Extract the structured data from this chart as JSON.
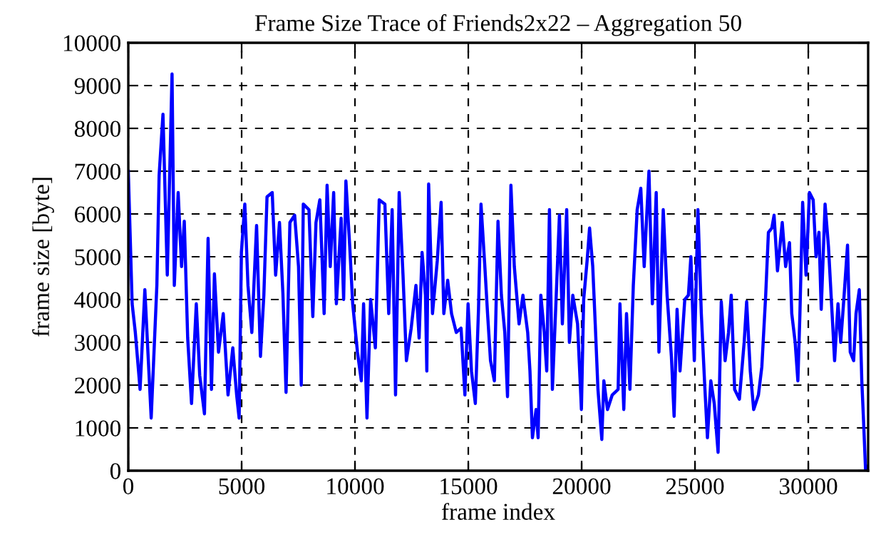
{
  "chart_data": {
    "type": "line",
    "title": "Frame Size Trace of Friends2x22 – Aggregation 50",
    "xlabel": "frame index",
    "ylabel": "frame size [byte]",
    "xlim": [
      0,
      32640
    ],
    "ylim": [
      0,
      10000
    ],
    "xticks": [
      0,
      5000,
      10000,
      15000,
      20000,
      25000,
      30000
    ],
    "yticks": [
      0,
      1000,
      2000,
      3000,
      4000,
      5000,
      6000,
      7000,
      8000,
      9000,
      10000
    ],
    "grid": true,
    "line_style": "solid",
    "marker": "none",
    "series": [
      {
        "color": "#0000ff",
        "x": [
          0,
          170,
          310,
          520,
          730,
          1010,
          1260,
          1360,
          1530,
          1720,
          1930,
          2030,
          2200,
          2350,
          2470,
          2620,
          2790,
          3000,
          3150,
          3360,
          3520,
          3670,
          3800,
          3980,
          4190,
          4400,
          4610,
          4780,
          4890,
          4990,
          5140,
          5280,
          5450,
          5660,
          5830,
          5980,
          6120,
          6350,
          6500,
          6670,
          6820,
          6960,
          7130,
          7340,
          7510,
          7630,
          7720,
          7970,
          8140,
          8280,
          8450,
          8640,
          8770,
          8910,
          9060,
          9180,
          9390,
          9500,
          9600,
          9770,
          9900,
          10110,
          10280,
          10380,
          10530,
          10690,
          10900,
          11070,
          11320,
          11490,
          11640,
          11790,
          11950,
          12120,
          12270,
          12480,
          12690,
          12830,
          12960,
          13110,
          13170,
          13250,
          13420,
          13630,
          13800,
          13920,
          14090,
          14260,
          14470,
          14680,
          14850,
          14990,
          15140,
          15310,
          15450,
          15560,
          15730,
          15850,
          15980,
          16150,
          16310,
          16460,
          16610,
          16730,
          16880,
          17030,
          17240,
          17410,
          17620,
          17720,
          17830,
          17990,
          18080,
          18200,
          18350,
          18460,
          18580,
          18710,
          18880,
          19020,
          19150,
          19340,
          19460,
          19610,
          19820,
          19990,
          20090,
          20240,
          20350,
          20490,
          20600,
          20720,
          20890,
          20980,
          21140,
          21350,
          21610,
          21690,
          21860,
          21980,
          22130,
          22280,
          22450,
          22610,
          22760,
          22970,
          23120,
          23290,
          23410,
          23600,
          23770,
          23960,
          24080,
          24210,
          24340,
          24550,
          24710,
          24820,
          24970,
          25130,
          25280,
          25430,
          25550,
          25700,
          25850,
          26020,
          26160,
          26330,
          26480,
          26600,
          26750,
          26960,
          27170,
          27280,
          27440,
          27590,
          27800,
          27950,
          28120,
          28240,
          28390,
          28490,
          28640,
          28850,
          29000,
          29170,
          29270,
          29420,
          29540,
          29630,
          29750,
          29900,
          30050,
          30215,
          30340,
          30470,
          30570,
          30740,
          30890,
          31050,
          31160,
          31310,
          31430,
          31580,
          31730,
          31850,
          32000,
          32105,
          32250,
          32360,
          32440,
          32525,
          32600
        ],
        "values": [
          7000,
          3900,
          3230,
          1900,
          4230,
          1230,
          4330,
          6900,
          8330,
          4570,
          9270,
          4330,
          6500,
          4770,
          5830,
          3100,
          1570,
          3900,
          2230,
          1330,
          5430,
          1900,
          4600,
          2770,
          3670,
          1770,
          2870,
          1770,
          1230,
          5100,
          6230,
          4330,
          3230,
          5730,
          2670,
          4100,
          6400,
          6500,
          4570,
          5800,
          4150,
          1830,
          5800,
          5970,
          4770,
          2000,
          6230,
          6100,
          3600,
          5800,
          6330,
          3670,
          6670,
          4770,
          6500,
          3900,
          5900,
          4000,
          6770,
          5230,
          3900,
          2770,
          2100,
          3900,
          1230,
          4000,
          2870,
          6330,
          6230,
          3670,
          6100,
          1770,
          6500,
          4570,
          2570,
          3330,
          4330,
          3100,
          5100,
          4100,
          2330,
          6700,
          3670,
          4900,
          6270,
          3670,
          4450,
          3670,
          3230,
          3330,
          1770,
          3900,
          2330,
          1570,
          3770,
          6230,
          4770,
          3670,
          2570,
          2100,
          5830,
          4100,
          3230,
          1730,
          6670,
          4770,
          3430,
          4100,
          3230,
          2330,
          770,
          1430,
          770,
          4100,
          3230,
          2330,
          6100,
          1900,
          4100,
          5970,
          3430,
          6100,
          3000,
          4100,
          3430,
          1430,
          4000,
          4900,
          5670,
          4770,
          3430,
          1900,
          730,
          2100,
          1430,
          1770,
          1900,
          3900,
          1430,
          3670,
          1900,
          4330,
          6100,
          6600,
          4770,
          7000,
          3900,
          6500,
          2770,
          6100,
          4100,
          2670,
          1270,
          3770,
          2330,
          4000,
          4100,
          5000,
          2570,
          6100,
          3670,
          2000,
          770,
          2100,
          1570,
          430,
          3950,
          2570,
          3230,
          4100,
          1900,
          1670,
          3000,
          3950,
          2330,
          1430,
          1770,
          2430,
          4100,
          5570,
          5670,
          5970,
          4670,
          5800,
          4770,
          5330,
          3670,
          3000,
          2100,
          3670,
          6270,
          4570,
          6500,
          6330,
          5000,
          5570,
          3770,
          6230,
          5230,
          3670,
          2570,
          3900,
          3000,
          4100,
          5270,
          2770,
          2570,
          3670,
          4230,
          2100,
          1130,
          30,
          100
        ]
      }
    ]
  }
}
